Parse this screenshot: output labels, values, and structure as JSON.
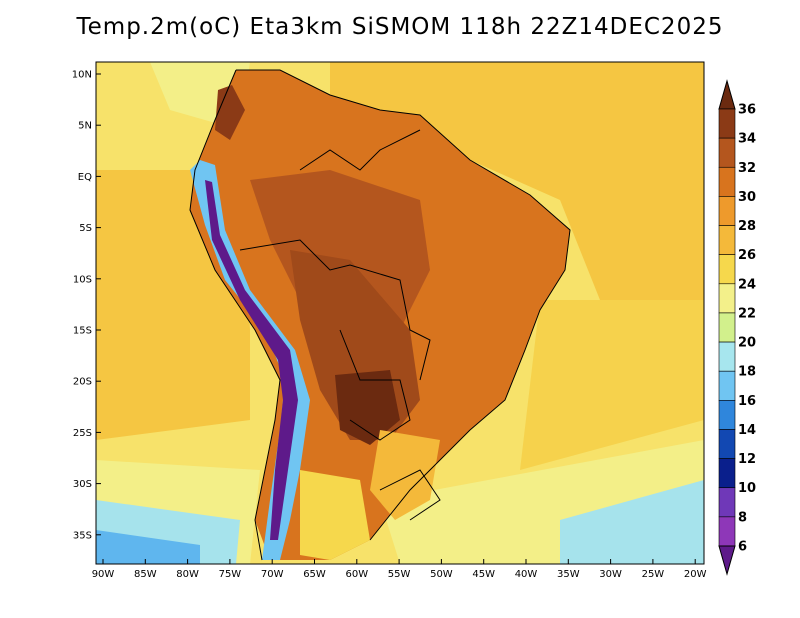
{
  "title": "Temp.2m(oC) Eta3km SiSMOM 118h 22Z14DEC2025",
  "map": {
    "lat_labels": [
      "10N",
      "5N",
      "EQ",
      "5S",
      "10S",
      "15S",
      "20S",
      "25S",
      "30S",
      "35S"
    ],
    "lon_labels": [
      "90W",
      "85W",
      "80W",
      "75W",
      "70W",
      "65W",
      "60W",
      "55W",
      "50W",
      "45W",
      "40W",
      "35W",
      "30W",
      "25W",
      "20W"
    ]
  },
  "colorbar": {
    "labels": [
      "36",
      "34",
      "32",
      "30",
      "28",
      "26",
      "24",
      "22",
      "20",
      "18",
      "16",
      "14",
      "12",
      "10",
      "8",
      "6"
    ],
    "colors": [
      "#6b2a10",
      "#8b3a16",
      "#b4561e",
      "#d8741e",
      "#ee9a2c",
      "#f4b93a",
      "#f6d84c",
      "#f3f08a",
      "#d2f08c",
      "#a7e6ee",
      "#70c5f2",
      "#2f86dc",
      "#1248b2",
      "#0a1f8c",
      "#6f38b8",
      "#8e37b8",
      "#5e1a8a"
    ]
  }
}
